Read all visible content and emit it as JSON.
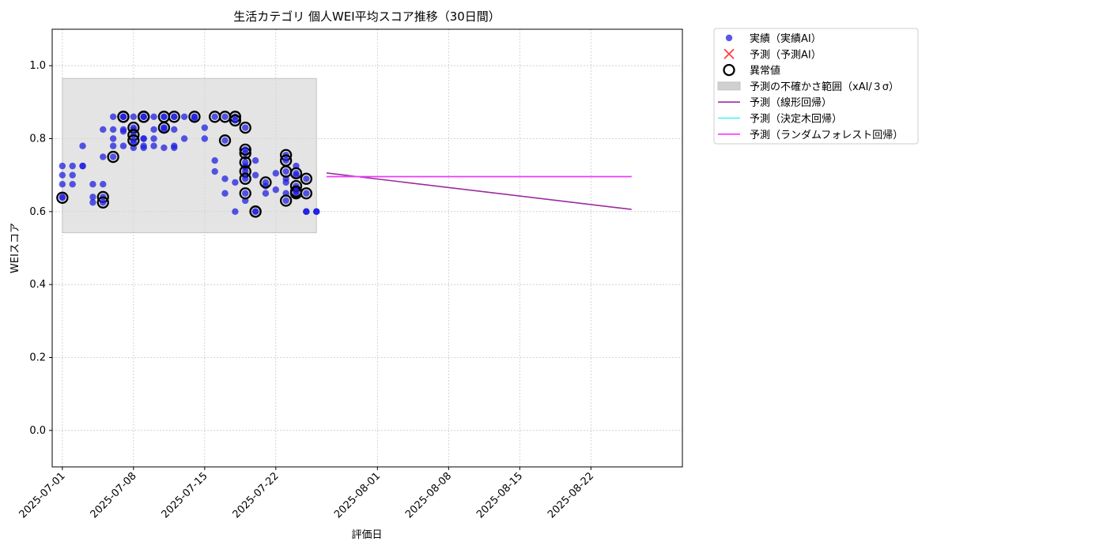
{
  "chart_data": {
    "type": "scatter",
    "title": "生活カテゴリ 個人WEI平均スコア推移（30日間）",
    "xlabel": "評価日",
    "ylabel": "WEIスコア",
    "ylim": [
      -0.1,
      1.1
    ],
    "xlim": [
      "2025-06-30",
      "2025-08-31"
    ],
    "yticks": [
      "0.0",
      "0.2",
      "0.4",
      "0.6",
      "0.8",
      "1.0"
    ],
    "xticks": [
      "2025-07-01",
      "2025-07-08",
      "2025-07-15",
      "2025-07-22",
      "2025-08-01",
      "2025-08-08",
      "2025-08-15",
      "2025-08-22"
    ],
    "grid": true,
    "legend_position": "outside-top-right",
    "legend": [
      {
        "label": "実績（実績AI）",
        "kind": "scatter-dot",
        "color": "#2020e0"
      },
      {
        "label": "予測（予測AI）",
        "kind": "x-marker",
        "color": "#ff4040"
      },
      {
        "label": "異常値",
        "kind": "ring",
        "color": "#000000"
      },
      {
        "label": "予測の不確かさ範囲（xAI/３σ）",
        "kind": "band",
        "color": "#d0d0d0"
      },
      {
        "label": "予測（線形回帰）",
        "kind": "line",
        "color": "#9c2aa0"
      },
      {
        "label": "予測（決定木回帰）",
        "kind": "line",
        "color": "#40f0ff"
      },
      {
        "label": "予測（ランダムフォレスト回帰）",
        "kind": "line",
        "color": "#ff30ff"
      }
    ],
    "series": [
      {
        "name": "実績（実績AI）",
        "color": "#2020e0",
        "x": [
          "2025-07-01",
          "2025-07-01",
          "2025-07-01",
          "2025-07-01",
          "2025-07-02",
          "2025-07-02",
          "2025-07-02",
          "2025-07-03",
          "2025-07-03",
          "2025-07-03",
          "2025-07-04",
          "2025-07-04",
          "2025-07-04",
          "2025-07-05",
          "2025-07-05",
          "2025-07-05",
          "2025-07-06",
          "2025-07-06",
          "2025-07-06",
          "2025-07-06",
          "2025-07-07",
          "2025-07-07",
          "2025-07-07",
          "2025-07-07",
          "2025-07-08",
          "2025-07-08",
          "2025-07-08",
          "2025-07-08",
          "2025-07-09",
          "2025-07-09",
          "2025-07-09",
          "2025-07-09",
          "2025-07-10",
          "2025-07-10",
          "2025-07-10",
          "2025-07-10",
          "2025-07-11",
          "2025-07-11",
          "2025-07-11",
          "2025-07-11",
          "2025-07-12",
          "2025-07-12",
          "2025-07-12",
          "2025-07-12",
          "2025-07-13",
          "2025-07-13",
          "2025-07-14",
          "2025-07-14",
          "2025-07-15",
          "2025-07-15",
          "2025-07-16",
          "2025-07-16",
          "2025-07-17",
          "2025-07-17",
          "2025-07-18",
          "2025-07-18",
          "2025-07-19",
          "2025-07-19",
          "2025-07-19",
          "2025-07-19",
          "2025-07-20",
          "2025-07-20",
          "2025-07-21",
          "2025-07-21",
          "2025-07-22",
          "2025-07-22",
          "2025-07-23",
          "2025-07-23",
          "2025-07-23",
          "2025-07-24",
          "2025-07-24",
          "2025-07-24",
          "2025-07-25",
          "2025-07-25",
          "2025-07-25",
          "2025-07-26",
          "2025-07-26",
          "2025-07-26"
        ],
        "y": [
          0.725,
          0.64,
          0.7,
          0.675,
          0.7,
          0.725,
          0.675,
          0.725,
          0.725,
          0.78,
          0.675,
          0.64,
          0.625,
          0.75,
          0.825,
          0.675,
          0.78,
          0.825,
          0.86,
          0.8,
          0.86,
          0.82,
          0.78,
          0.825,
          0.79,
          0.86,
          0.825,
          0.775,
          0.8,
          0.775,
          0.78,
          0.8,
          0.825,
          0.86,
          0.78,
          0.8,
          0.86,
          0.83,
          0.825,
          0.775,
          0.825,
          0.86,
          0.78,
          0.775,
          0.86,
          0.8,
          0.86,
          0.855,
          0.8,
          0.83,
          0.74,
          0.71,
          0.65,
          0.69,
          0.6,
          0.68,
          0.7,
          0.725,
          0.72,
          0.63,
          0.7,
          0.74,
          0.65,
          0.67,
          0.66,
          0.705,
          0.65,
          0.69,
          0.68,
          0.725,
          0.7,
          0.66,
          0.6,
          0.6,
          0.6,
          0.6,
          0.6,
          0.6
        ]
      },
      {
        "name": "異常値",
        "color": "#000000",
        "x": [
          "2025-07-01",
          "2025-07-05",
          "2025-07-05",
          "2025-07-06",
          "2025-07-07",
          "2025-07-07",
          "2025-07-08",
          "2025-07-08",
          "2025-07-08",
          "2025-07-09",
          "2025-07-09",
          "2025-07-09",
          "2025-07-11",
          "2025-07-11",
          "2025-07-12",
          "2025-07-14",
          "2025-07-16",
          "2025-07-17",
          "2025-07-17",
          "2025-07-18",
          "2025-07-18",
          "2025-07-19",
          "2025-07-19",
          "2025-07-19",
          "2025-07-19",
          "2025-07-19",
          "2025-07-19",
          "2025-07-19",
          "2025-07-20",
          "2025-07-20",
          "2025-07-21",
          "2025-07-23",
          "2025-07-23",
          "2025-07-23",
          "2025-07-23",
          "2025-07-24",
          "2025-07-24",
          "2025-07-24",
          "2025-07-24",
          "2025-07-25",
          "2025-07-25"
        ],
        "y": [
          0.638,
          0.64,
          0.625,
          0.75,
          0.86,
          0.86,
          0.83,
          0.81,
          0.795,
          0.86,
          0.86,
          0.86,
          0.86,
          0.83,
          0.86,
          0.86,
          0.86,
          0.86,
          0.795,
          0.86,
          0.85,
          0.83,
          0.76,
          0.77,
          0.735,
          0.71,
          0.65,
          0.69,
          0.6,
          0.6,
          0.68,
          0.755,
          0.74,
          0.71,
          0.63,
          0.65,
          0.67,
          0.705,
          0.655,
          0.69,
          0.65
        ]
      }
    ],
    "uncertainty_band": {
      "x": [
        "2025-07-01",
        "2025-07-26"
      ],
      "y": [
        0.542,
        0.965
      ]
    },
    "lines": [
      {
        "name": "予測（線形回帰）",
        "color": "#9c2aa0",
        "x": [
          "2025-07-27",
          "2025-08-26"
        ],
        "y": [
          0.706,
          0.606
        ]
      },
      {
        "name": "予測（決定木回帰）",
        "color": "#40f0ff",
        "x": [
          "2025-07-27",
          "2025-08-26"
        ],
        "y": [
          0.696,
          0.696
        ]
      },
      {
        "name": "予測（ランダムフォレスト回帰）",
        "color": "#ff30ff",
        "x": [
          "2025-07-27",
          "2025-08-26"
        ],
        "y": [
          0.696,
          0.696
        ]
      }
    ]
  }
}
